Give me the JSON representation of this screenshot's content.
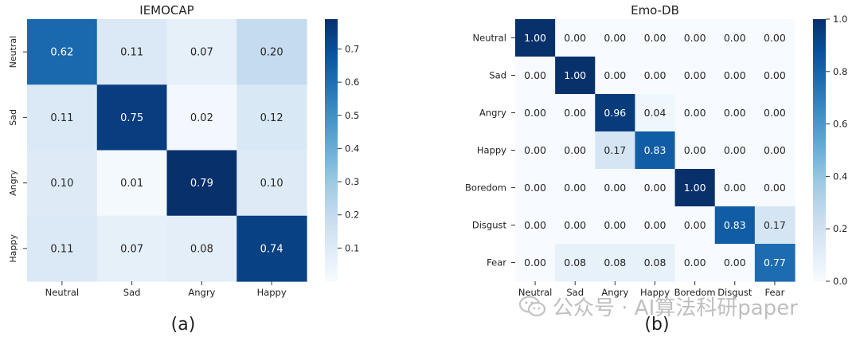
{
  "chart_data": [
    {
      "type": "heatmap",
      "title": "IEMOCAP",
      "caption": "(a)",
      "row_labels": [
        "Neutral",
        "Sad",
        "Angry",
        "Happy"
      ],
      "col_labels": [
        "Neutral",
        "Sad",
        "Angry",
        "Happy"
      ],
      "values": [
        [
          0.62,
          0.11,
          0.07,
          0.2
        ],
        [
          0.11,
          0.75,
          0.02,
          0.12
        ],
        [
          0.1,
          0.01,
          0.79,
          0.1
        ],
        [
          0.11,
          0.07,
          0.08,
          0.74
        ]
      ],
      "value_labels": [
        [
          "0.62",
          "0.11",
          "0.07",
          "0.20"
        ],
        [
          "0.11",
          "0.75",
          "0.02",
          "0.12"
        ],
        [
          "0.10",
          "0.01",
          "0.79",
          "0.10"
        ],
        [
          "0.11",
          "0.07",
          "0.08",
          "0.74"
        ]
      ],
      "colorbar": {
        "min": 0.0,
        "max": 0.79,
        "ticks": [
          0.1,
          0.2,
          0.3,
          0.4,
          0.5,
          0.6,
          0.7
        ],
        "tick_labels": [
          "0.1",
          "0.2",
          "0.3",
          "0.4",
          "0.5",
          "0.6",
          "0.7"
        ]
      },
      "colormap": "Blues"
    },
    {
      "type": "heatmap",
      "title": "Emo-DB",
      "caption": "(b)",
      "row_labels": [
        "Neutral",
        "Sad",
        "Angry",
        "Happy",
        "Boredom",
        "Disgust",
        "Fear"
      ],
      "col_labels": [
        "Neutral",
        "Sad",
        "Angry",
        "Happy",
        "Boredom",
        "Disgust",
        "Fear"
      ],
      "values": [
        [
          1.0,
          0.0,
          0.0,
          0.0,
          0.0,
          0.0,
          0.0
        ],
        [
          0.0,
          1.0,
          0.0,
          0.0,
          0.0,
          0.0,
          0.0
        ],
        [
          0.0,
          0.0,
          0.96,
          0.04,
          0.0,
          0.0,
          0.0
        ],
        [
          0.0,
          0.0,
          0.17,
          0.83,
          0.0,
          0.0,
          0.0
        ],
        [
          0.0,
          0.0,
          0.0,
          0.0,
          1.0,
          0.0,
          0.0
        ],
        [
          0.0,
          0.0,
          0.0,
          0.0,
          0.0,
          0.83,
          0.17
        ],
        [
          0.0,
          0.08,
          0.08,
          0.08,
          0.0,
          0.0,
          0.77
        ]
      ],
      "value_labels": [
        [
          "1.00",
          "0.00",
          "0.00",
          "0.00",
          "0.00",
          "0.00",
          "0.00"
        ],
        [
          "0.00",
          "1.00",
          "0.00",
          "0.00",
          "0.00",
          "0.00",
          "0.00"
        ],
        [
          "0.00",
          "0.00",
          "0.96",
          "0.04",
          "0.00",
          "0.00",
          "0.00"
        ],
        [
          "0.00",
          "0.00",
          "0.17",
          "0.83",
          "0.00",
          "0.00",
          "0.00"
        ],
        [
          "0.00",
          "0.00",
          "0.00",
          "0.00",
          "1.00",
          "0.00",
          "0.00"
        ],
        [
          "0.00",
          "0.00",
          "0.00",
          "0.00",
          "0.00",
          "0.83",
          "0.17"
        ],
        [
          "0.00",
          "0.08",
          "0.08",
          "0.08",
          "0.00",
          "0.00",
          "0.77"
        ]
      ],
      "colorbar": {
        "min": 0.0,
        "max": 1.0,
        "ticks": [
          0.0,
          0.2,
          0.4,
          0.6,
          0.8,
          1.0
        ],
        "tick_labels": [
          "0.0",
          "0.2",
          "0.4",
          "0.6",
          "0.8",
          "1.0"
        ]
      },
      "colormap": "Blues"
    }
  ],
  "watermark": {
    "text": "公众号 · AI算法科研paper"
  }
}
